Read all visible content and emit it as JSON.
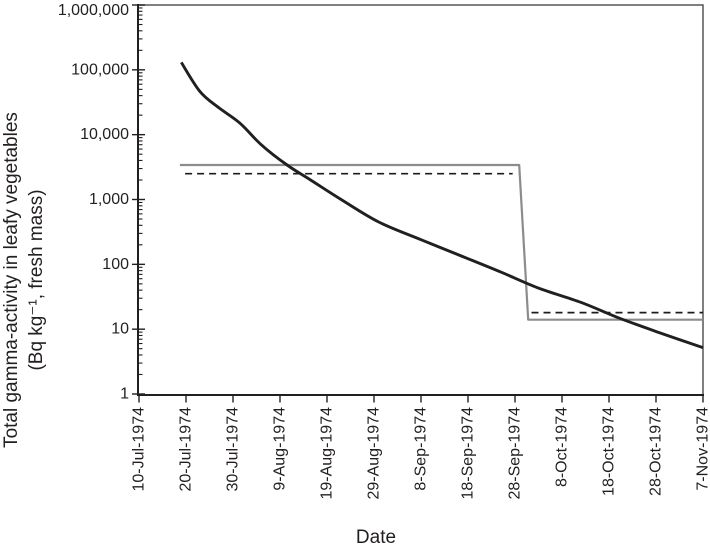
{
  "style": {
    "background": "#ffffff",
    "axis_color": "#231f20",
    "text_color": "#231f20",
    "box_border_color": "#4a4a4a"
  },
  "chart_data": {
    "type": "line",
    "title": "",
    "xlabel": "Date",
    "ylabel_line1": "Total gamma-activity in leafy vegetables",
    "ylabel_line2": "(Bq kg⁻¹, fresh mass)",
    "grid": false,
    "legend": "none",
    "x_axis": {
      "kind": "date",
      "origin_label": "10-Jul-1974",
      "tick_interval_days": 10,
      "tick_days": [
        0,
        10,
        20,
        30,
        40,
        50,
        60,
        70,
        80,
        90,
        100,
        110,
        120
      ],
      "tick_labels": [
        "10-Jul-1974",
        "20-Jul-1974",
        "30-Jul-1974",
        "9-Aug-1974",
        "19-Aug-1974",
        "29-Aug-1974",
        "8-Sep-1974",
        "18-Sep-1974",
        "28-Sep-1974",
        "8-Oct-1974",
        "18-Oct-1974",
        "28-Oct-1974",
        "7-Nov-1974"
      ]
    },
    "y_axis": {
      "scale": "log10",
      "min": 1,
      "max": 1000000,
      "tick_values": [
        1,
        10,
        100,
        1000,
        10000,
        100000,
        1000000
      ],
      "tick_labels": [
        "1",
        "10",
        "100",
        "1,000",
        "10,000",
        "100,000",
        "1,000,000"
      ],
      "minor_log_ticks": true
    },
    "series": [
      {
        "name": "dashed step line",
        "line_style": "dashed",
        "color": "#1c1c1c",
        "width": 1.7,
        "smooth": false,
        "high_level": 2500,
        "low_level": 18,
        "segments": [
          [
            [
              9.8,
              2500
            ],
            [
              79.5,
              2500
            ]
          ],
          [
            [
              83.5,
              18
            ],
            [
              120,
              18
            ]
          ]
        ]
      },
      {
        "name": "thin solid step line",
        "line_style": "solid",
        "color": "#8c8c8c",
        "width": 2.2,
        "smooth": false,
        "high_level": 3400,
        "low_level": 14,
        "step_day": 81.8,
        "segments": [
          [
            [
              8.7,
              3400
            ],
            [
              80.9,
              3400
            ],
            [
              82.8,
              14
            ],
            [
              120,
              14
            ]
          ]
        ]
      },
      {
        "name": "thick solid curve (total gamma-activity)",
        "line_style": "solid",
        "color": "#231f20",
        "width": 2.9,
        "smooth": true,
        "segments": [
          [
            [
              9,
              130000
            ],
            [
              13,
              46000
            ],
            [
              17,
              26000
            ],
            [
              21.5,
              15000
            ],
            [
              26,
              7000
            ],
            [
              31.5,
              3400
            ],
            [
              36.5,
              2000
            ],
            [
              43,
              1000
            ],
            [
              51,
              450
            ],
            [
              60,
              240
            ],
            [
              68,
              140
            ],
            [
              77,
              76
            ],
            [
              85,
              43
            ],
            [
              94,
              26
            ],
            [
              102,
              15
            ],
            [
              111,
              8.7
            ],
            [
              120,
              5.2
            ]
          ]
        ]
      }
    ]
  }
}
